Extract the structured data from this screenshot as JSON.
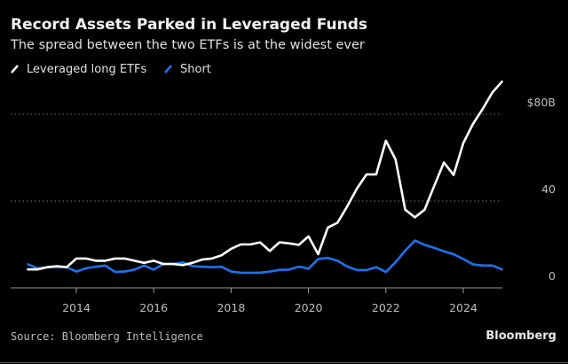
{
  "chart_data": {
    "type": "line",
    "title": "Record Assets Parked in Leveraged Funds",
    "subtitle": "The spread between the two ETFs is at the widest ever",
    "xlabel": "",
    "ylabel": "",
    "xlim": [
      2012.3,
      2026.3
    ],
    "ylim": [
      0,
      100
    ],
    "grid": true,
    "legend_position": "top-left",
    "x_ticks": [
      2014,
      2016,
      2018,
      2020,
      2022,
      2024
    ],
    "x_tick_labels": [
      "2014",
      "2016",
      "2018",
      "2020",
      "2022",
      "2024"
    ],
    "y_ticks": [
      0,
      40,
      80
    ],
    "y_tick_labels": [
      "0",
      "40",
      "$80B"
    ],
    "x": [
      2012.75,
      2013,
      2013.25,
      2013.5,
      2013.75,
      2014,
      2014.25,
      2014.5,
      2014.75,
      2015,
      2015.25,
      2015.5,
      2015.75,
      2016,
      2016.25,
      2016.5,
      2016.75,
      2017,
      2017.25,
      2017.5,
      2017.75,
      2018,
      2018.25,
      2018.5,
      2018.75,
      2019,
      2019.25,
      2019.5,
      2019.75,
      2020,
      2020.25,
      2020.5,
      2020.75,
      2021,
      2021.25,
      2021.5,
      2021.75,
      2022,
      2022.25,
      2022.5,
      2022.75,
      2023,
      2023.25,
      2023.5,
      2023.75,
      2024,
      2024.25,
      2024.5,
      2024.75,
      2025
    ],
    "series": [
      {
        "name": "Leveraged long ETFs",
        "color": "#ffffff",
        "values": [
          8.5,
          8.5,
          9.5,
          10,
          9.5,
          13.5,
          13.5,
          12.5,
          12.5,
          13.5,
          13.5,
          12.5,
          11.5,
          12.5,
          11,
          11,
          10.5,
          11.5,
          13,
          13.5,
          15,
          18,
          20,
          20,
          21,
          17,
          21,
          20.5,
          19.8,
          23.7,
          15.5,
          27.8,
          30,
          37.5,
          45.7,
          52.3,
          52.3,
          67.8,
          59.2,
          36,
          32.5,
          36,
          47,
          57.8,
          52,
          66.7,
          75.5,
          82.4,
          90,
          95
        ]
      },
      {
        "name": "Short",
        "color": "#1a73f0",
        "values": [
          10.8,
          9,
          9.5,
          9.5,
          9.5,
          7.5,
          9,
          9.7,
          10.3,
          7.3,
          7.5,
          8.4,
          10.3,
          8.4,
          11,
          11,
          11.7,
          10,
          9.7,
          9.5,
          9.7,
          7.5,
          7,
          7,
          7,
          7.5,
          8.3,
          8.4,
          9.8,
          8.8,
          13.3,
          13.8,
          12.5,
          9.8,
          8.2,
          8.2,
          9.5,
          7.3,
          11.8,
          17.2,
          21.8,
          19.8,
          18.4,
          16.8,
          15.5,
          13.3,
          10.8,
          10.3,
          10.3,
          8.5
        ]
      }
    ],
    "source": "Source: Bloomberg Intelligence",
    "brand": "Bloomberg"
  }
}
